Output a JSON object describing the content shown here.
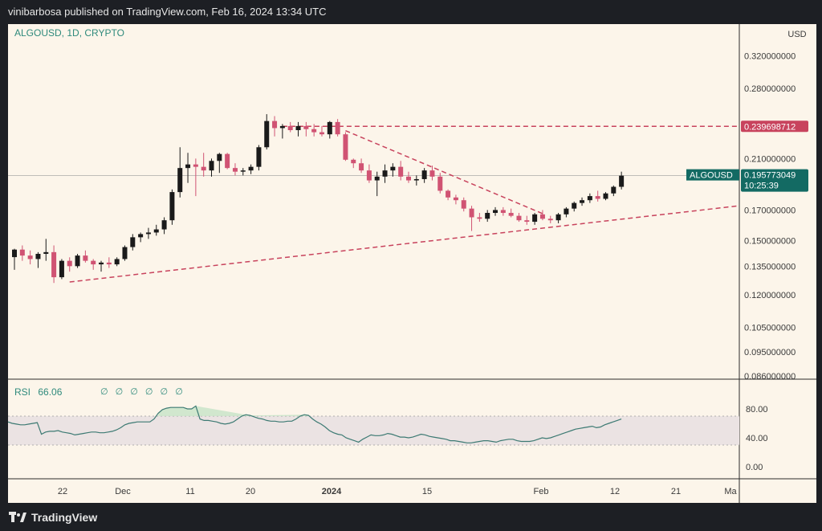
{
  "header": {
    "text": "vinibarbosa published on TradingView.com, Feb 16, 2024 13:34 UTC"
  },
  "symbol": {
    "label": "ALGOUSD, 1D, CRYPTO"
  },
  "rsi": {
    "label": "RSI",
    "value": "66.06",
    "icons": "∅ ∅ ∅ ∅ ∅ ∅"
  },
  "currency": "USD",
  "footer": {
    "brand": "TradingView"
  },
  "colors": {
    "up": "#1a1a1a",
    "down": "#d05373",
    "trend": "#c8435d",
    "level": "#c8435d",
    "rsi": "#3d7a73",
    "price_tag": "#136a63"
  },
  "chart_data": {
    "type": "candlestick",
    "price_scale": "log",
    "ylim": [
      0.086,
      0.36
    ],
    "y_ticks": [
      "0.320000000",
      "0.280000000",
      "0.210000000",
      "0.170000000",
      "0.150000000",
      "0.135000000",
      "0.120000000",
      "0.105000000",
      "0.095000000",
      "0.086000000"
    ],
    "x_ticks": [
      "22",
      "Dec",
      "11",
      "20",
      "2024",
      "15",
      "Feb",
      "12",
      "21",
      "Ma"
    ],
    "current_price": {
      "label": "ALGOUSD",
      "value": "0.195773049",
      "countdown": "10:25:39"
    },
    "level_line": {
      "value": "0.239698712"
    },
    "rsi_ticks": [
      "80.00",
      "40.00",
      "0.00"
    ],
    "rsi_band": [
      30,
      70
    ],
    "rsi_values": [
      62,
      60,
      59,
      58,
      58,
      59,
      60,
      61,
      45,
      48,
      49,
      49,
      50,
      48,
      47,
      46,
      44,
      45,
      46,
      47,
      48,
      48,
      47,
      47,
      48,
      49,
      51,
      54,
      58,
      60,
      61,
      62,
      62,
      62,
      62,
      66,
      74,
      79,
      81,
      82,
      82,
      82,
      82,
      80,
      80,
      84,
      66,
      64,
      64,
      63,
      62,
      60,
      59,
      60,
      62,
      66,
      70,
      72,
      71,
      69,
      67,
      66,
      64,
      63,
      63,
      62,
      62,
      63,
      63,
      66,
      70,
      72,
      71,
      66,
      62,
      59,
      55,
      50,
      47,
      45,
      44,
      40,
      38,
      36,
      34,
      38,
      41,
      44,
      43,
      43,
      44,
      46,
      45,
      43,
      41,
      41,
      40,
      41,
      43,
      45,
      44,
      42,
      41,
      40,
      39,
      38,
      36,
      36,
      35,
      34,
      33,
      33,
      34,
      35,
      36,
      36,
      35,
      34,
      36,
      37,
      38,
      38,
      36,
      35,
      35,
      35,
      36,
      38,
      40,
      39,
      40,
      42,
      44,
      46,
      48,
      50,
      52,
      53,
      54,
      55,
      56,
      54,
      55,
      58,
      60,
      62,
      64,
      66
    ],
    "candles": [
      [
        0.1401,
        0.145,
        0.133,
        0.1445
      ],
      [
        0.1445,
        0.147,
        0.138,
        0.141
      ],
      [
        0.141,
        0.144,
        0.136,
        0.139
      ],
      [
        0.139,
        0.143,
        0.134,
        0.142
      ],
      [
        0.142,
        0.151,
        0.138,
        0.143
      ],
      [
        0.143,
        0.147,
        0.126,
        0.129
      ],
      [
        0.129,
        0.139,
        0.128,
        0.138
      ],
      [
        0.138,
        0.14,
        0.132,
        0.135
      ],
      [
        0.135,
        0.142,
        0.134,
        0.141
      ],
      [
        0.141,
        0.144,
        0.137,
        0.138
      ],
      [
        0.138,
        0.139,
        0.133,
        0.136
      ],
      [
        0.136,
        0.138,
        0.132,
        0.137
      ],
      [
        0.137,
        0.14,
        0.134,
        0.136
      ],
      [
        0.136,
        0.14,
        0.135,
        0.139
      ],
      [
        0.139,
        0.147,
        0.138,
        0.146
      ],
      [
        0.146,
        0.154,
        0.144,
        0.152
      ],
      [
        0.152,
        0.155,
        0.149,
        0.154
      ],
      [
        0.154,
        0.158,
        0.151,
        0.155
      ],
      [
        0.155,
        0.16,
        0.153,
        0.157
      ],
      [
        0.157,
        0.165,
        0.154,
        0.163
      ],
      [
        0.163,
        0.185,
        0.16,
        0.183
      ],
      [
        0.183,
        0.22,
        0.179,
        0.202
      ],
      [
        0.202,
        0.215,
        0.19,
        0.205
      ],
      [
        0.205,
        0.21,
        0.18,
        0.203
      ],
      [
        0.203,
        0.215,
        0.195,
        0.2
      ],
      [
        0.2,
        0.21,
        0.195,
        0.208
      ],
      [
        0.208,
        0.215,
        0.198,
        0.214
      ],
      [
        0.214,
        0.215,
        0.201,
        0.202
      ],
      [
        0.202,
        0.206,
        0.196,
        0.199
      ],
      [
        0.199,
        0.202,
        0.196,
        0.2
      ],
      [
        0.2,
        0.205,
        0.197,
        0.203
      ],
      [
        0.203,
        0.222,
        0.2,
        0.22
      ],
      [
        0.22,
        0.252,
        0.218,
        0.245
      ],
      [
        0.245,
        0.25,
        0.23,
        0.238
      ],
      [
        0.238,
        0.242,
        0.228,
        0.24
      ],
      [
        0.24,
        0.244,
        0.234,
        0.236
      ],
      [
        0.236,
        0.244,
        0.23,
        0.24
      ],
      [
        0.24,
        0.244,
        0.23,
        0.237
      ],
      [
        0.237,
        0.242,
        0.23,
        0.234
      ],
      [
        0.234,
        0.24,
        0.23,
        0.232
      ],
      [
        0.232,
        0.245,
        0.228,
        0.244
      ],
      [
        0.244,
        0.247,
        0.23,
        0.232
      ],
      [
        0.232,
        0.234,
        0.208,
        0.209
      ],
      [
        0.209,
        0.21,
        0.202,
        0.206
      ],
      [
        0.206,
        0.21,
        0.198,
        0.2
      ],
      [
        0.2,
        0.205,
        0.19,
        0.192
      ],
      [
        0.192,
        0.199,
        0.18,
        0.195
      ],
      [
        0.195,
        0.205,
        0.19,
        0.2
      ],
      [
        0.2,
        0.206,
        0.195,
        0.203
      ],
      [
        0.203,
        0.208,
        0.192,
        0.195
      ],
      [
        0.195,
        0.199,
        0.19,
        0.192
      ],
      [
        0.192,
        0.196,
        0.188,
        0.193
      ],
      [
        0.193,
        0.202,
        0.19,
        0.2
      ],
      [
        0.2,
        0.204,
        0.192,
        0.195
      ],
      [
        0.195,
        0.198,
        0.182,
        0.184
      ],
      [
        0.184,
        0.185,
        0.177,
        0.179
      ],
      [
        0.179,
        0.181,
        0.174,
        0.177
      ],
      [
        0.177,
        0.179,
        0.169,
        0.171
      ],
      [
        0.171,
        0.173,
        0.156,
        0.165
      ],
      [
        0.165,
        0.168,
        0.162,
        0.164
      ],
      [
        0.164,
        0.17,
        0.162,
        0.168
      ],
      [
        0.168,
        0.172,
        0.166,
        0.17
      ],
      [
        0.17,
        0.172,
        0.166,
        0.168
      ],
      [
        0.168,
        0.171,
        0.165,
        0.166
      ],
      [
        0.166,
        0.168,
        0.162,
        0.163
      ],
      [
        0.163,
        0.166,
        0.16,
        0.162
      ],
      [
        0.162,
        0.168,
        0.16,
        0.167
      ],
      [
        0.167,
        0.17,
        0.163,
        0.164
      ],
      [
        0.164,
        0.166,
        0.161,
        0.163
      ],
      [
        0.163,
        0.168,
        0.161,
        0.167
      ],
      [
        0.167,
        0.172,
        0.165,
        0.171
      ],
      [
        0.171,
        0.176,
        0.169,
        0.175
      ],
      [
        0.175,
        0.179,
        0.173,
        0.177
      ],
      [
        0.177,
        0.182,
        0.175,
        0.18
      ],
      [
        0.18,
        0.184,
        0.176,
        0.178
      ],
      [
        0.178,
        0.183,
        0.177,
        0.182
      ],
      [
        0.182,
        0.188,
        0.18,
        0.187
      ],
      [
        0.187,
        0.199,
        0.185,
        0.1958
      ]
    ]
  }
}
